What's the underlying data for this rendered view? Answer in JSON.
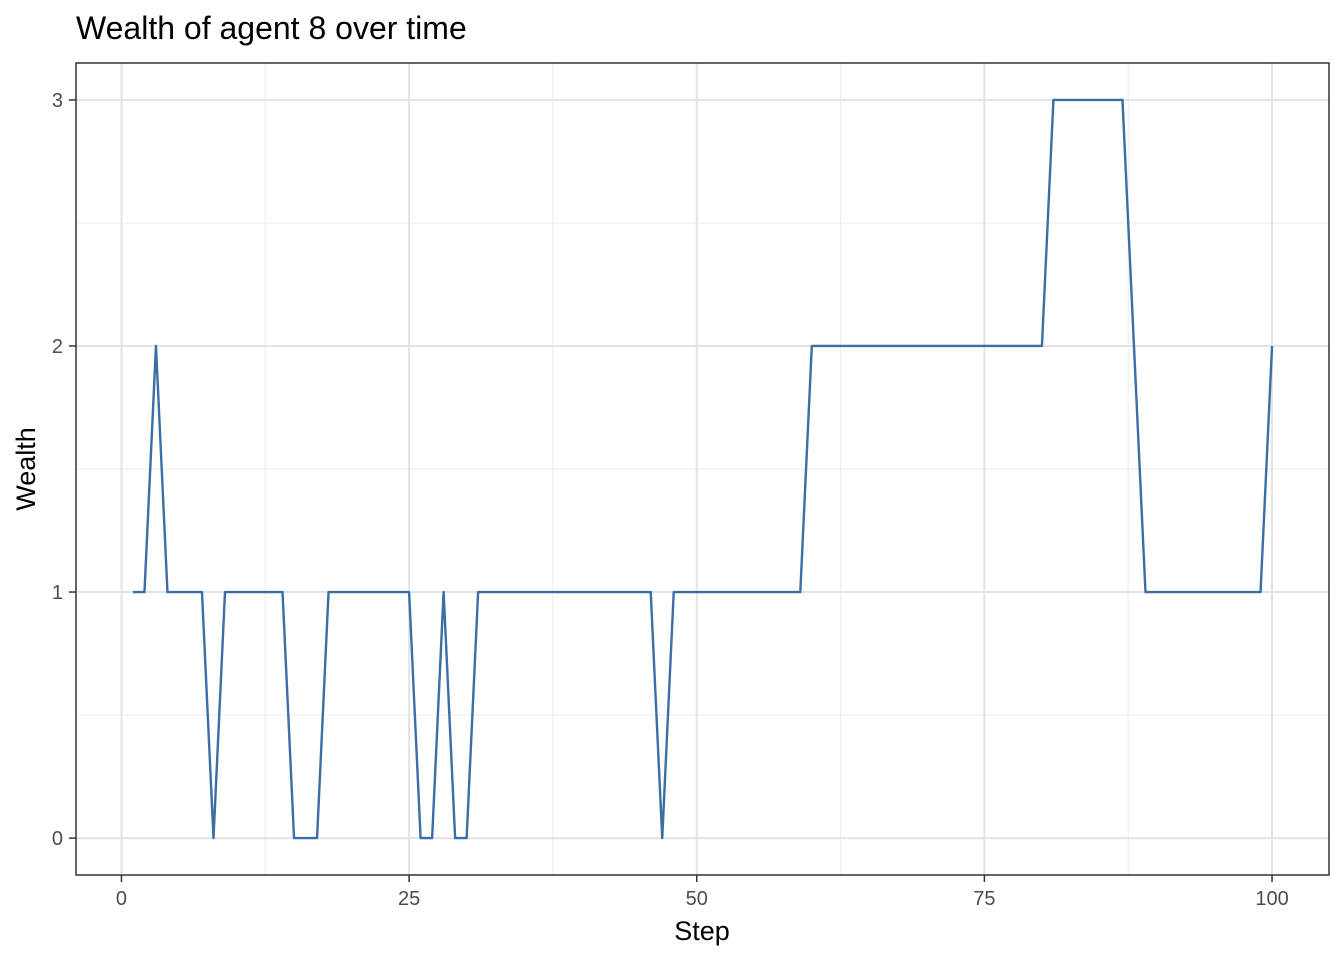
{
  "chart_data": {
    "type": "line",
    "title": "Wealth of agent 8 over time",
    "xlabel": "Step",
    "ylabel": "Wealth",
    "xlim": [
      -3.95,
      104.95
    ],
    "ylim": [
      -0.15,
      3.15
    ],
    "x_ticks": [
      0,
      25,
      50,
      75,
      100
    ],
    "y_ticks": [
      0,
      1,
      2,
      3
    ],
    "x_minor_ticks": [
      12.5,
      37.5,
      62.5,
      87.5
    ],
    "y_minor_ticks": [
      0.5,
      1.5,
      2.5
    ],
    "grid": true,
    "legend": "none",
    "line_color": "#3a6ea5",
    "series": [
      {
        "x": [
          1,
          2,
          3,
          4,
          5,
          6,
          7,
          8,
          9,
          10,
          11,
          12,
          13,
          14,
          15,
          16,
          17,
          18,
          19,
          20,
          21,
          22,
          23,
          24,
          25,
          26,
          27,
          28,
          29,
          30,
          31,
          32,
          33,
          34,
          35,
          36,
          37,
          38,
          39,
          40,
          41,
          42,
          43,
          44,
          45,
          46,
          47,
          48,
          49,
          50,
          51,
          52,
          53,
          54,
          55,
          56,
          57,
          58,
          59,
          60,
          61,
          62,
          63,
          64,
          65,
          66,
          67,
          68,
          69,
          70,
          71,
          72,
          73,
          74,
          75,
          76,
          77,
          78,
          79,
          80,
          81,
          82,
          83,
          84,
          85,
          86,
          87,
          88,
          89,
          90,
          91,
          92,
          93,
          94,
          95,
          96,
          97,
          98,
          99,
          100
        ],
        "values": [
          1,
          1,
          2,
          1,
          1,
          1,
          1,
          0,
          1,
          1,
          1,
          1,
          1,
          1,
          0,
          0,
          0,
          1,
          1,
          1,
          1,
          1,
          1,
          1,
          1,
          0,
          0,
          1,
          0,
          0,
          1,
          1,
          1,
          1,
          1,
          1,
          1,
          1,
          1,
          1,
          1,
          1,
          1,
          1,
          1,
          1,
          0,
          1,
          1,
          1,
          1,
          1,
          1,
          1,
          1,
          1,
          1,
          1,
          1,
          2,
          2,
          2,
          2,
          2,
          2,
          2,
          2,
          2,
          2,
          2,
          2,
          2,
          2,
          2,
          2,
          2,
          2,
          2,
          2,
          2,
          3,
          3,
          3,
          3,
          3,
          3,
          3,
          2,
          1,
          1,
          1,
          1,
          1,
          1,
          1,
          1,
          1,
          1,
          1,
          2
        ]
      }
    ]
  }
}
